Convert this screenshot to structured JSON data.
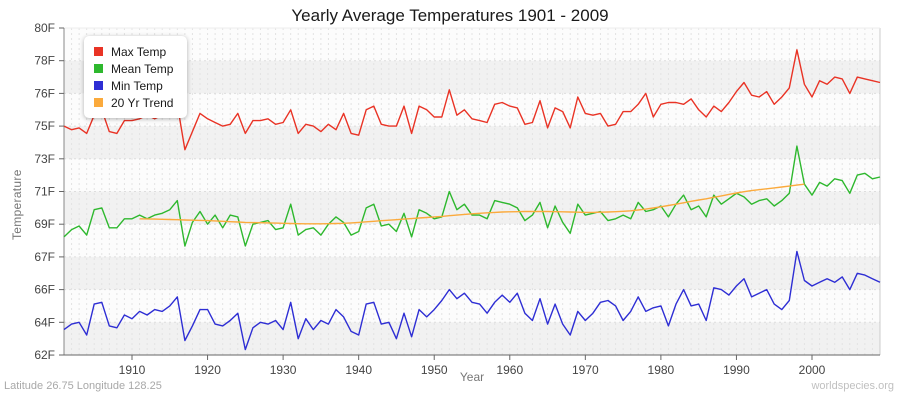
{
  "footer": {
    "location": "Latitude 26.75 Longitude 128.25",
    "watermark": "worldspecies.org"
  },
  "chart_data": {
    "type": "line",
    "title": "Yearly Average Temperatures 1901 - 2009",
    "xlabel": "Year",
    "ylabel": "Temperature",
    "x_range": [
      1901,
      2009
    ],
    "y_range": [
      62,
      80
    ],
    "grid": "horizontal bands alternating white/gray with dashed yearly vertical gridlines",
    "legend_position": "top-left inside plot",
    "y_tick_labels": [
      "80F",
      "78F",
      "76F",
      "75F",
      "73F",
      "71F",
      "69F",
      "67F",
      "66F",
      "64F",
      "62F"
    ],
    "x_ticks": [
      1910,
      1920,
      1930,
      1940,
      1950,
      1960,
      1970,
      1980,
      1990,
      2000
    ],
    "colors": {
      "max": "#e93325",
      "mean": "#2eb82e",
      "min": "#2e2ed4",
      "trend": "#fbaa3c"
    },
    "series": [
      {
        "name": "Max Temp",
        "color": "#e93325",
        "x_start": 1901,
        "values": [
          74.6,
          74.4,
          74.5,
          74.2,
          75.2,
          75.5,
          74.3,
          74.2,
          74.9,
          74.9,
          75.0,
          75.2,
          75.0,
          75.2,
          75.5,
          75.8,
          73.3,
          74.3,
          75.3,
          75.0,
          74.8,
          74.6,
          74.7,
          75.3,
          74.2,
          74.9,
          74.9,
          75.0,
          74.7,
          74.8,
          75.5,
          74.2,
          74.7,
          74.6,
          74.3,
          74.7,
          74.4,
          75.3,
          74.2,
          74.1,
          75.5,
          75.7,
          74.7,
          74.6,
          74.6,
          75.7,
          74.2,
          75.7,
          75.5,
          75.1,
          75.1,
          76.6,
          75.2,
          75.5,
          75.0,
          74.9,
          74.8,
          75.8,
          75.9,
          75.7,
          75.6,
          74.7,
          74.8,
          76.0,
          74.5,
          75.6,
          75.4,
          74.5,
          76.2,
          75.3,
          75.2,
          75.3,
          74.6,
          74.7,
          75.4,
          75.4,
          75.8,
          76.4,
          75.1,
          75.8,
          75.9,
          75.9,
          75.8,
          76.1,
          75.5,
          75.1,
          75.7,
          75.4,
          75.9,
          76.5,
          77.0,
          76.3,
          76.2,
          76.5,
          75.8,
          76.2,
          76.7,
          78.8,
          76.9,
          76.2,
          77.1,
          76.9,
          77.3,
          77.2,
          76.4,
          77.3,
          77.2,
          77.1,
          77.0
        ]
      },
      {
        "name": "Mean Temp",
        "color": "#2eb82e",
        "x_start": 1901,
        "values": [
          68.5,
          68.9,
          69.1,
          68.6,
          70.0,
          70.1,
          69.0,
          69.0,
          69.5,
          69.5,
          69.7,
          69.5,
          69.7,
          69.8,
          70.0,
          70.5,
          68.0,
          69.3,
          69.9,
          69.2,
          69.7,
          69.0,
          69.7,
          69.6,
          68.0,
          69.2,
          69.3,
          69.4,
          68.9,
          69.0,
          70.3,
          68.6,
          68.9,
          69.0,
          68.6,
          69.2,
          69.6,
          69.3,
          68.6,
          68.8,
          70.1,
          70.3,
          69.1,
          69.2,
          68.8,
          69.8,
          68.5,
          70.0,
          69.8,
          69.5,
          69.6,
          71.0,
          70.0,
          70.3,
          69.7,
          69.7,
          69.5,
          70.5,
          70.4,
          70.3,
          70.1,
          69.4,
          69.7,
          70.4,
          69.0,
          70.2,
          69.3,
          68.7,
          70.3,
          69.7,
          69.8,
          69.9,
          69.4,
          69.5,
          69.7,
          69.5,
          70.4,
          69.9,
          70.0,
          70.2,
          69.6,
          70.3,
          70.8,
          70.0,
          70.2,
          69.6,
          70.8,
          70.3,
          70.6,
          70.9,
          70.7,
          70.3,
          70.5,
          70.6,
          70.2,
          70.5,
          70.9,
          73.5,
          71.4,
          70.8,
          71.5,
          71.3,
          71.7,
          71.6,
          70.9,
          71.9,
          72.0,
          71.7,
          71.8
        ]
      },
      {
        "name": "Min Temp",
        "color": "#2e2ed4",
        "x_start": 1901,
        "values": [
          63.4,
          63.7,
          63.8,
          63.1,
          64.8,
          64.9,
          63.6,
          63.5,
          64.2,
          64.0,
          64.4,
          64.2,
          64.5,
          64.4,
          64.7,
          65.2,
          62.8,
          63.6,
          64.5,
          64.5,
          63.7,
          63.6,
          63.9,
          64.3,
          62.3,
          63.5,
          63.8,
          63.7,
          63.9,
          63.4,
          64.9,
          62.9,
          64.0,
          63.4,
          63.9,
          63.7,
          64.5,
          64.1,
          63.3,
          63.1,
          64.8,
          64.9,
          63.7,
          63.8,
          62.9,
          64.3,
          63.0,
          64.5,
          64.1,
          64.5,
          65.0,
          65.6,
          65.1,
          65.4,
          64.9,
          64.8,
          64.3,
          64.9,
          65.3,
          64.9,
          65.4,
          64.3,
          63.9,
          65.1,
          63.7,
          64.8,
          63.7,
          63.1,
          64.4,
          63.9,
          64.3,
          64.9,
          65.0,
          64.7,
          63.9,
          64.4,
          65.2,
          64.4,
          64.6,
          64.7,
          63.6,
          64.8,
          65.6,
          64.7,
          64.8,
          63.9,
          65.7,
          65.6,
          65.3,
          65.8,
          66.2,
          65.2,
          65.4,
          65.6,
          64.8,
          64.5,
          65.0,
          67.7,
          66.1,
          65.8,
          66.0,
          66.2,
          66.0,
          66.3,
          65.6,
          66.5,
          66.4,
          66.2,
          66.0
        ]
      },
      {
        "name": "20 Yr Trend",
        "color": "#fbaa3c",
        "x_start": 1911,
        "values": [
          69.5,
          69.49,
          69.48,
          69.47,
          69.46,
          69.45,
          69.43,
          69.42,
          69.41,
          69.4,
          69.38,
          69.36,
          69.34,
          69.32,
          69.3,
          69.29,
          69.28,
          69.27,
          69.26,
          69.25,
          69.24,
          69.23,
          69.22,
          69.22,
          69.22,
          69.23,
          69.24,
          69.25,
          69.27,
          69.3,
          69.33,
          69.36,
          69.39,
          69.42,
          69.45,
          69.48,
          69.51,
          69.54,
          69.57,
          69.6,
          69.63,
          69.67,
          69.7,
          69.74,
          69.77,
          69.8,
          69.83,
          69.85,
          69.87,
          69.88,
          69.89,
          69.9,
          69.9,
          69.9,
          69.9,
          69.89,
          69.88,
          69.87,
          69.86,
          69.85,
          69.85,
          69.86,
          69.87,
          69.89,
          69.91,
          69.94,
          69.98,
          70.03,
          70.09,
          70.16,
          70.23,
          70.3,
          70.38,
          70.46,
          70.53,
          70.6,
          70.68,
          70.76,
          70.84,
          70.92,
          70.99,
          71.05,
          71.1,
          71.15,
          71.2,
          71.25,
          71.3,
          71.35,
          71.4
        ]
      }
    ]
  }
}
